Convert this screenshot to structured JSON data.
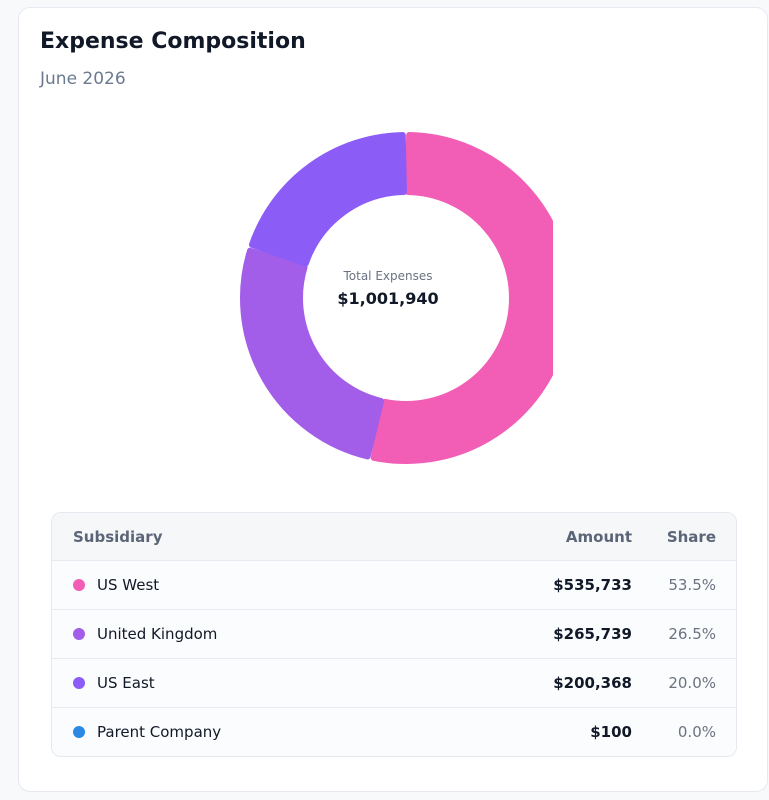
{
  "card": {
    "title": "Expense Composition",
    "subtitle": "June 2026"
  },
  "center": {
    "label": "Total Expenses",
    "value": "$1,001,940"
  },
  "table": {
    "headers": {
      "name": "Subsidiary",
      "amount": "Amount",
      "share": "Share"
    },
    "rows": [
      {
        "name": "US West",
        "amount": "$535,733",
        "share": "53.5%",
        "color": "#f25db5"
      },
      {
        "name": "United Kingdom",
        "amount": "$265,739",
        "share": "26.5%",
        "color": "#a25ee8"
      },
      {
        "name": "US East",
        "amount": "$200,368",
        "share": "20.0%",
        "color": "#8b5cf6"
      },
      {
        "name": "Parent Company",
        "amount": "$100",
        "share": "0.0%",
        "color": "#2b89e3"
      }
    ]
  },
  "chart_data": {
    "type": "pie",
    "donut": true,
    "title": "Expense Composition",
    "subtitle": "June 2026",
    "categories": [
      "US West",
      "United Kingdom",
      "US East",
      "Parent Company"
    ],
    "values": [
      535733,
      265739,
      200368,
      100
    ],
    "colors": [
      "#f25db5",
      "#a25ee8",
      "#8b5cf6",
      "#2b89e3"
    ],
    "total": 1001940
  }
}
